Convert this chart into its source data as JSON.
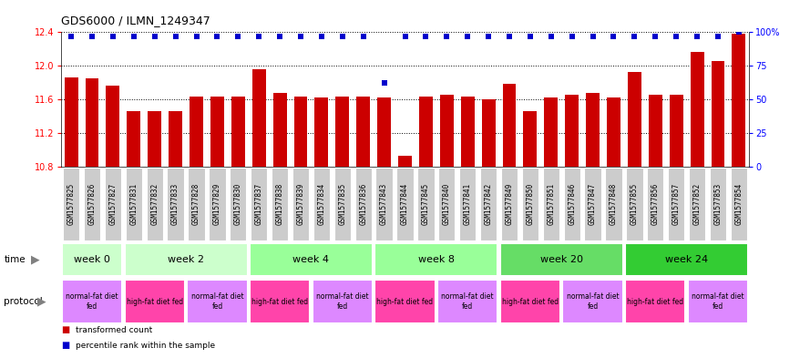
{
  "title": "GDS6000 / ILMN_1249347",
  "samples": [
    "GSM1577825",
    "GSM1577826",
    "GSM1577827",
    "GSM1577831",
    "GSM1577832",
    "GSM1577833",
    "GSM1577828",
    "GSM1577829",
    "GSM1577830",
    "GSM1577837",
    "GSM1577838",
    "GSM1577839",
    "GSM1577834",
    "GSM1577835",
    "GSM1577836",
    "GSM1577843",
    "GSM1577844",
    "GSM1577845",
    "GSM1577840",
    "GSM1577841",
    "GSM1577842",
    "GSM1577849",
    "GSM1577850",
    "GSM1577851",
    "GSM1577846",
    "GSM1577847",
    "GSM1577848",
    "GSM1577855",
    "GSM1577856",
    "GSM1577857",
    "GSM1577852",
    "GSM1577853",
    "GSM1577854"
  ],
  "bar_values": [
    11.86,
    11.85,
    11.76,
    11.46,
    11.46,
    11.46,
    11.63,
    11.63,
    11.63,
    11.96,
    11.68,
    11.63,
    11.62,
    11.63,
    11.63,
    11.62,
    10.93,
    11.63,
    11.65,
    11.63,
    11.6,
    11.79,
    11.46,
    11.62,
    11.65,
    11.68,
    11.62,
    11.93,
    11.65,
    11.66,
    12.16,
    12.06,
    12.38
  ],
  "percentile_values": [
    97,
    97,
    97,
    97,
    97,
    97,
    97,
    97,
    97,
    97,
    97,
    97,
    97,
    97,
    97,
    62,
    97,
    97,
    97,
    97,
    97,
    97,
    97,
    97,
    97,
    97,
    97,
    97,
    97,
    97,
    97,
    97,
    100
  ],
  "ylim_left": [
    10.8,
    12.4
  ],
  "ylim_right": [
    0,
    100
  ],
  "yticks_left": [
    10.8,
    11.2,
    11.6,
    12.0,
    12.4
  ],
  "yticks_right": [
    0,
    25,
    50,
    75,
    100
  ],
  "bar_color": "#cc0000",
  "percentile_color": "#0000cc",
  "time_groups": [
    {
      "label": "week 0",
      "start": 0,
      "end": 3,
      "color": "#ccffcc"
    },
    {
      "label": "week 2",
      "start": 3,
      "end": 9,
      "color": "#ccffcc"
    },
    {
      "label": "week 4",
      "start": 9,
      "end": 15,
      "color": "#99ff99"
    },
    {
      "label": "week 8",
      "start": 15,
      "end": 21,
      "color": "#99ff99"
    },
    {
      "label": "week 20",
      "start": 21,
      "end": 27,
      "color": "#66dd66"
    },
    {
      "label": "week 24",
      "start": 27,
      "end": 33,
      "color": "#33cc33"
    }
  ],
  "protocol_groups": [
    {
      "label": "normal-fat diet\nfed",
      "start": 0,
      "end": 3,
      "color": "#dd88ff"
    },
    {
      "label": "high-fat diet fed",
      "start": 3,
      "end": 6,
      "color": "#ff44aa"
    },
    {
      "label": "normal-fat diet\nfed",
      "start": 6,
      "end": 9,
      "color": "#dd88ff"
    },
    {
      "label": "high-fat diet fed",
      "start": 9,
      "end": 12,
      "color": "#ff44aa"
    },
    {
      "label": "normal-fat diet\nfed",
      "start": 12,
      "end": 15,
      "color": "#dd88ff"
    },
    {
      "label": "high-fat diet fed",
      "start": 15,
      "end": 18,
      "color": "#ff44aa"
    },
    {
      "label": "normal-fat diet\nfed",
      "start": 18,
      "end": 21,
      "color": "#dd88ff"
    },
    {
      "label": "high-fat diet fed",
      "start": 21,
      "end": 24,
      "color": "#ff44aa"
    },
    {
      "label": "normal-fat diet\nfed",
      "start": 24,
      "end": 27,
      "color": "#dd88ff"
    },
    {
      "label": "high-fat diet fed",
      "start": 27,
      "end": 30,
      "color": "#ff44aa"
    },
    {
      "label": "normal-fat diet\nfed",
      "start": 30,
      "end": 33,
      "color": "#dd88ff"
    }
  ],
  "legend_items": [
    {
      "label": "transformed count",
      "color": "#cc0000"
    },
    {
      "label": "percentile rank within the sample",
      "color": "#0000cc"
    }
  ],
  "xlabel_bg": "#cccccc",
  "tick_label_size": 5.5,
  "bar_width": 0.65
}
